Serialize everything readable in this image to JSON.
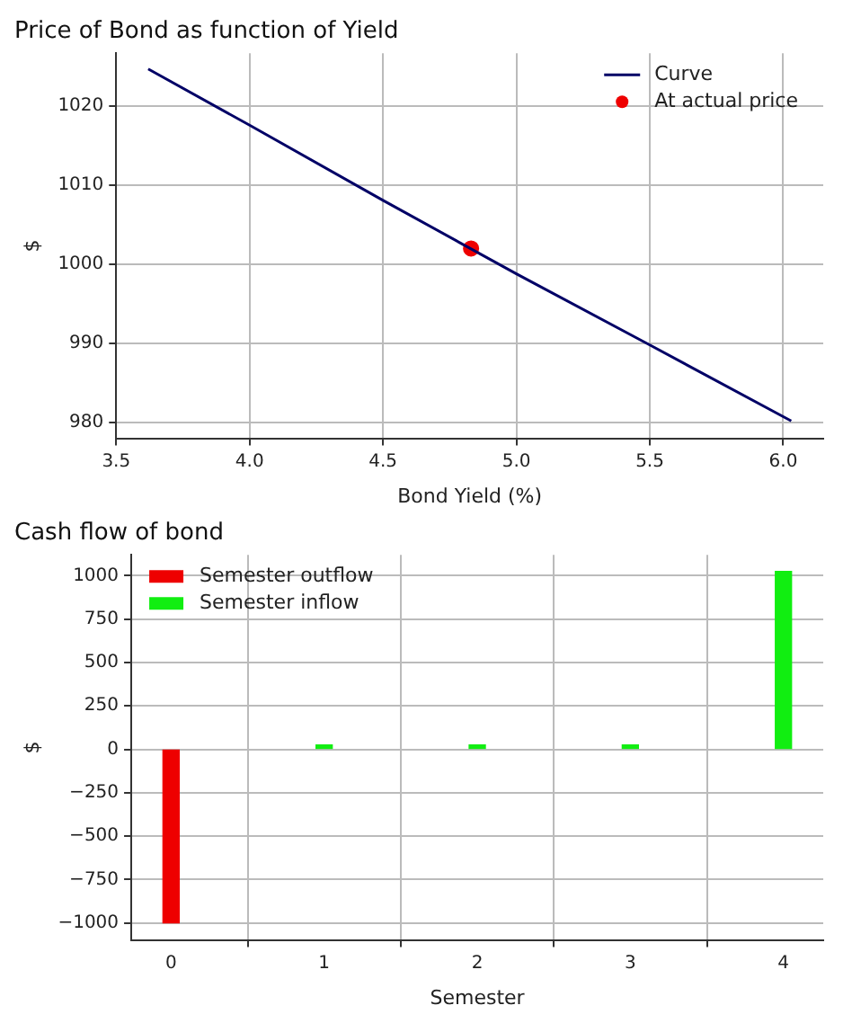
{
  "chart_data": [
    {
      "type": "line",
      "title": "Price of Bond as function of Yield",
      "xlabel": "Bond Yield (%)",
      "ylabel": "$",
      "xlim": [
        3.5,
        6.15
      ],
      "xticks": [
        {
          "value": 3.5,
          "label": "3.5"
        },
        {
          "value": 4,
          "label": "4.0"
        },
        {
          "value": 4.5,
          "label": "4.5"
        },
        {
          "value": 5,
          "label": "5.0"
        },
        {
          "value": 5.5,
          "label": "5.5"
        },
        {
          "value": 6,
          "label": "6.0"
        }
      ],
      "ylim": [
        978,
        1026.7
      ],
      "yticks": [
        980,
        990,
        1000,
        1010,
        1020
      ],
      "grid": true,
      "legend": "top right",
      "series": [
        {
          "name": "Curve",
          "type": "line",
          "color": "#000066",
          "x": [
            3.62,
            4.0,
            4.5,
            5.0,
            5.5,
            6.03
          ],
          "values": [
            1024.7,
            1017.6,
            1008.1,
            998.8,
            989.8,
            980.2
          ],
          "marker": "none"
        },
        {
          "name": "At actual price",
          "type": "scatter",
          "color": "#ee0000",
          "x": [
            4.83
          ],
          "values": [
            1002
          ],
          "marker": "circle"
        }
      ]
    },
    {
      "type": "bar",
      "title": "Cash flow of bond",
      "xlabel": "Semester",
      "ylabel": "$",
      "x": [
        0,
        1,
        2,
        3,
        4
      ],
      "xlim": [
        -0.26,
        4.26
      ],
      "xticks": [
        0,
        1,
        2,
        3,
        4
      ],
      "ylim": [
        -1098,
        1120
      ],
      "yticks": [
        -1000,
        -750,
        -500,
        -250,
        0,
        250,
        500,
        750,
        1000
      ],
      "grid": true,
      "legend": "top left",
      "series": [
        {
          "name": "Semester outflow",
          "color": "#ee0000",
          "values": [
            -1000,
            null,
            null,
            null,
            null
          ]
        },
        {
          "name": "Semester inflow",
          "color": "#11ee11",
          "values": [
            null,
            25,
            25,
            25,
            1025
          ]
        }
      ]
    }
  ]
}
